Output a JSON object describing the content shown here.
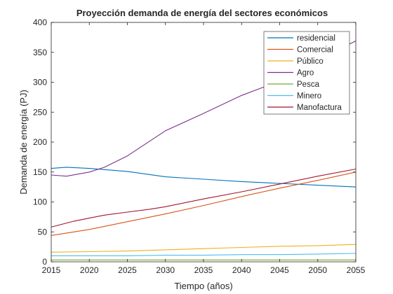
{
  "chart_data": {
    "type": "line",
    "title": "Proyección demanda de energía del sectores económicos",
    "xlabel": "Tiempo (años)",
    "ylabel": "Demanda de energía (PJ)",
    "xlim": [
      2015,
      2055
    ],
    "ylim": [
      0,
      400
    ],
    "xticks": [
      2015,
      2020,
      2025,
      2030,
      2035,
      2040,
      2045,
      2050,
      2055
    ],
    "yticks": [
      0,
      50,
      100,
      150,
      200,
      250,
      300,
      350,
      400
    ],
    "grid": false,
    "legend_position": "top-right",
    "series": [
      {
        "name": "residencial",
        "color": "#0072BD",
        "x": [
          2015,
          2017,
          2020,
          2025,
          2030,
          2035,
          2040,
          2045,
          2050,
          2055
        ],
        "y": [
          156,
          158,
          156,
          151,
          142,
          138,
          134,
          131,
          128,
          125
        ]
      },
      {
        "name": "Comercial",
        "color": "#D95319",
        "x": [
          2015,
          2020,
          2025,
          2030,
          2035,
          2040,
          2045,
          2050,
          2055
        ],
        "y": [
          44,
          54,
          67,
          80,
          94,
          109,
          123,
          136,
          150
        ]
      },
      {
        "name": "Público",
        "color": "#EDB120",
        "x": [
          2015,
          2020,
          2025,
          2030,
          2035,
          2040,
          2045,
          2050,
          2055
        ],
        "y": [
          16,
          17,
          18,
          20,
          22,
          24,
          26,
          27,
          29
        ]
      },
      {
        "name": "Agro",
        "color": "#7E2F8E",
        "x": [
          2015,
          2017,
          2020,
          2022,
          2025,
          2030,
          2035,
          2040,
          2045,
          2050,
          2055
        ],
        "y": [
          145,
          143,
          150,
          158,
          177,
          219,
          248,
          278,
          302,
          338,
          369
        ]
      },
      {
        "name": "Pesca",
        "color": "#77AC30",
        "x": [
          2015,
          2020,
          2025,
          2030,
          2035,
          2040,
          2045,
          2050,
          2055
        ],
        "y": [
          3,
          3,
          3,
          3,
          3,
          3,
          3,
          3,
          3
        ]
      },
      {
        "name": "Minero",
        "color": "#4DBEEE",
        "x": [
          2015,
          2020,
          2025,
          2030,
          2035,
          2040,
          2045,
          2050,
          2055
        ],
        "y": [
          10,
          10,
          10,
          11,
          11,
          12,
          12,
          13,
          14
        ]
      },
      {
        "name": "Manofactura",
        "color": "#A2142F",
        "x": [
          2015,
          2018,
          2020,
          2022,
          2025,
          2028,
          2030,
          2035,
          2040,
          2045,
          2050,
          2055
        ],
        "y": [
          58,
          68,
          73,
          78,
          83,
          88,
          92,
          105,
          117,
          130,
          143,
          155
        ]
      }
    ]
  }
}
